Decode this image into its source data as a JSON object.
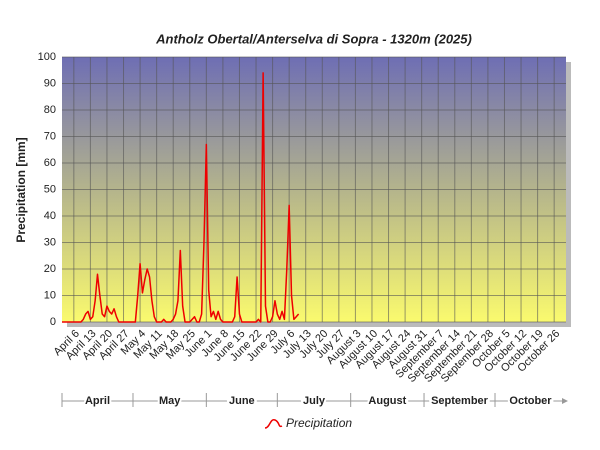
{
  "chart_data": {
    "type": "line",
    "title": "Antholz Obertal/Anterselva di Sopra - 1320m (2025)",
    "y_label": "Precipitation [mm]",
    "xlim": [
      "April 1",
      "October 31"
    ],
    "xticks": [
      "April 6",
      "April 13",
      "April 20",
      "April 27",
      "May 4",
      "May 11",
      "May 18",
      "May 25",
      "June 1",
      "June 8",
      "June 15",
      "June 22",
      "June 29",
      "July 6",
      "July 13",
      "July 20",
      "July 27",
      "August 3",
      "August 10",
      "August 17",
      "August 24",
      "August 31",
      "September 7",
      "September 14",
      "September 21",
      "September 28",
      "October 5",
      "October 12",
      "October 19",
      "October 26"
    ],
    "months": [
      "April",
      "May",
      "June",
      "July",
      "August",
      "September",
      "October"
    ],
    "ylim": [
      0,
      100
    ],
    "yticks": [
      0,
      10,
      20,
      30,
      40,
      50,
      60,
      70,
      80,
      90,
      100
    ],
    "grid": true,
    "x": [
      "April 1",
      "April 2",
      "April 3",
      "April 4",
      "April 5",
      "April 6",
      "April 7",
      "April 8",
      "April 9",
      "April 10",
      "April 11",
      "April 12",
      "April 13",
      "April 14",
      "April 15",
      "April 16",
      "April 17",
      "April 18",
      "April 19",
      "April 20",
      "April 21",
      "April 22",
      "April 23",
      "April 24",
      "April 25",
      "April 26",
      "April 27",
      "April 28",
      "April 29",
      "April 30",
      "May 1",
      "May 2",
      "May 3",
      "May 4",
      "May 5",
      "May 6",
      "May 7",
      "May 8",
      "May 9",
      "May 10",
      "May 11",
      "May 12",
      "May 13",
      "May 14",
      "May 15",
      "May 16",
      "May 17",
      "May 18",
      "May 19",
      "May 20",
      "May 21",
      "May 22",
      "May 23",
      "May 24",
      "May 25",
      "May 26",
      "May 27",
      "May 28",
      "May 29",
      "May 30",
      "May 31",
      "June 1",
      "June 2",
      "June 3",
      "June 4",
      "June 5",
      "June 6",
      "June 7",
      "June 8",
      "June 9",
      "June 10",
      "June 11",
      "June 12",
      "June 13",
      "June 14",
      "June 15",
      "June 16",
      "June 17",
      "June 18",
      "June 19",
      "June 20",
      "June 21",
      "June 22",
      "June 23",
      "June 24",
      "June 25",
      "June 26",
      "June 27",
      "June 28",
      "June 29",
      "June 30",
      "July 1",
      "July 2",
      "July 3",
      "July 4",
      "July 5",
      "July 6",
      "July 7",
      "July 8",
      "July 9",
      "July 10"
    ],
    "series": [
      {
        "name": "Precipitation",
        "color": "#ee0000",
        "values": [
          0,
          0,
          0,
          0,
          0,
          0,
          0,
          0,
          0,
          1,
          3,
          4,
          1,
          2,
          8,
          18,
          10,
          3,
          2,
          6,
          4,
          3,
          5,
          2,
          0,
          0,
          0,
          0,
          0,
          0,
          0,
          0,
          10,
          22,
          11,
          16,
          20,
          17,
          8,
          2,
          0,
          0,
          0,
          1,
          0,
          0,
          0,
          1,
          3,
          8,
          27,
          6,
          0,
          0,
          0,
          1,
          2,
          0,
          0,
          3,
          30,
          67,
          12,
          2,
          4,
          1,
          4,
          1,
          0,
          0,
          0,
          0,
          0,
          2,
          17,
          3,
          0,
          0,
          0,
          0,
          0,
          0,
          0,
          1,
          0,
          94,
          6,
          0,
          0,
          2,
          8,
          3,
          1,
          4,
          1,
          20,
          44,
          10,
          1,
          2,
          3
        ]
      }
    ]
  }
}
